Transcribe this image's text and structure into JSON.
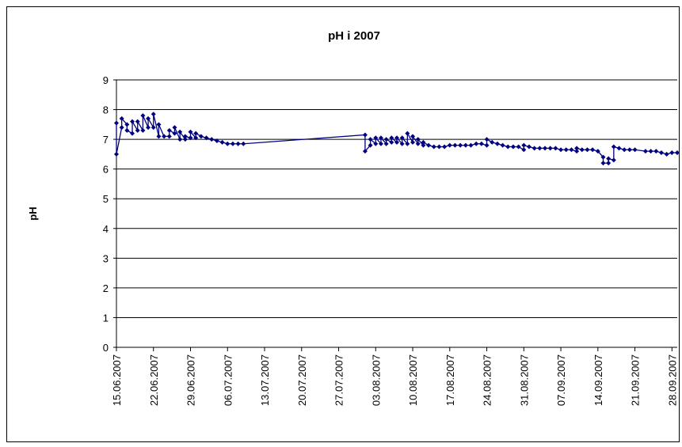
{
  "chart_data": {
    "type": "line",
    "title": "pH i 2007",
    "y_label": "pH",
    "color": "#000080",
    "grid": true,
    "xlim": [
      "15.06.2007",
      "29.09.2007"
    ],
    "xticks": [
      "15.06.2007",
      "22.06.2007",
      "29.06.2007",
      "06.07.2007",
      "13.07.2007",
      "20.07.2007",
      "27.07.2007",
      "03.08.2007",
      "10.08.2007",
      "17.08.2007",
      "24.08.2007",
      "31.08.2007",
      "07.09.2007",
      "14.09.2007",
      "21.09.2007",
      "28.09.2007"
    ],
    "ylim": [
      0,
      9
    ],
    "yticks": [
      0,
      1,
      2,
      3,
      4,
      5,
      6,
      7,
      8,
      9
    ],
    "x": [
      "15.06.2007",
      "15.06.2007",
      "16.06.2007",
      "16.06.2007",
      "17.06.2007",
      "17.06.2007",
      "18.06.2007",
      "18.06.2007",
      "19.06.2007",
      "19.06.2007",
      "20.06.2007",
      "20.06.2007",
      "21.06.2007",
      "21.06.2007",
      "22.06.2007",
      "22.06.2007",
      "23.06.2007",
      "23.06.2007",
      "24.06.2007",
      "25.06.2007",
      "25.06.2007",
      "26.06.2007",
      "26.06.2007",
      "27.06.2007",
      "27.06.2007",
      "28.06.2007",
      "28.06.2007",
      "29.06.2007",
      "29.06.2007",
      "30.06.2007",
      "30.06.2007",
      "01.07.2007",
      "02.07.2007",
      "03.07.2007",
      "04.07.2007",
      "05.07.2007",
      "06.07.2007",
      "07.07.2007",
      "08.07.2007",
      "09.07.2007",
      "01.08.2007",
      "01.08.2007",
      "02.08.2007",
      "02.08.2007",
      "03.08.2007",
      "03.08.2007",
      "04.08.2007",
      "04.08.2007",
      "05.08.2007",
      "05.08.2007",
      "06.08.2007",
      "06.08.2007",
      "07.08.2007",
      "07.08.2007",
      "08.08.2007",
      "08.08.2007",
      "09.08.2007",
      "09.08.2007",
      "10.08.2007",
      "10.08.2007",
      "11.08.2007",
      "11.08.2007",
      "12.08.2007",
      "12.08.2007",
      "13.08.2007",
      "14.08.2007",
      "15.08.2007",
      "16.08.2007",
      "17.08.2007",
      "18.08.2007",
      "19.08.2007",
      "20.08.2007",
      "21.08.2007",
      "22.08.2007",
      "23.08.2007",
      "24.08.2007",
      "24.08.2007",
      "25.08.2007",
      "26.08.2007",
      "27.08.2007",
      "28.08.2007",
      "29.08.2007",
      "30.08.2007",
      "31.08.2007",
      "31.08.2007",
      "01.09.2007",
      "02.09.2007",
      "03.09.2007",
      "04.09.2007",
      "05.09.2007",
      "06.09.2007",
      "07.09.2007",
      "08.09.2007",
      "09.09.2007",
      "10.09.2007",
      "10.09.2007",
      "11.09.2007",
      "12.09.2007",
      "13.09.2007",
      "14.09.2007",
      "15.09.2007",
      "15.09.2007",
      "16.09.2007",
      "16.09.2007",
      "17.09.2007",
      "17.09.2007",
      "18.09.2007",
      "19.09.2007",
      "20.09.2007",
      "21.09.2007",
      "23.09.2007",
      "24.09.2007",
      "25.09.2007",
      "26.09.2007",
      "27.09.2007",
      "28.09.2007",
      "29.09.2007"
    ],
    "values": [
      7.55,
      6.5,
      7.4,
      7.7,
      7.5,
      7.3,
      7.2,
      7.6,
      7.3,
      7.6,
      7.3,
      7.8,
      7.4,
      7.7,
      7.4,
      7.85,
      7.1,
      7.5,
      7.1,
      7.1,
      7.3,
      7.2,
      7.4,
      7.0,
      7.25,
      7.0,
      7.1,
      7.05,
      7.25,
      7.05,
      7.2,
      7.1,
      7.05,
      7.0,
      6.95,
      6.9,
      6.85,
      6.85,
      6.85,
      6.85,
      7.15,
      6.6,
      6.8,
      7.0,
      6.85,
      7.05,
      6.85,
      7.05,
      6.85,
      7.0,
      6.9,
      7.05,
      6.9,
      7.05,
      6.85,
      7.05,
      6.85,
      7.2,
      6.9,
      7.1,
      6.85,
      7.0,
      6.8,
      6.9,
      6.8,
      6.75,
      6.75,
      6.75,
      6.8,
      6.8,
      6.8,
      6.8,
      6.8,
      6.85,
      6.85,
      6.8,
      7.0,
      6.9,
      6.85,
      6.8,
      6.75,
      6.75,
      6.75,
      6.65,
      6.8,
      6.75,
      6.7,
      6.7,
      6.7,
      6.7,
      6.7,
      6.65,
      6.65,
      6.65,
      6.6,
      6.7,
      6.65,
      6.65,
      6.65,
      6.6,
      6.4,
      6.2,
      6.2,
      6.35,
      6.3,
      6.75,
      6.7,
      6.65,
      6.65,
      6.65,
      6.6,
      6.6,
      6.6,
      6.55,
      6.5,
      6.55,
      6.55
    ]
  }
}
